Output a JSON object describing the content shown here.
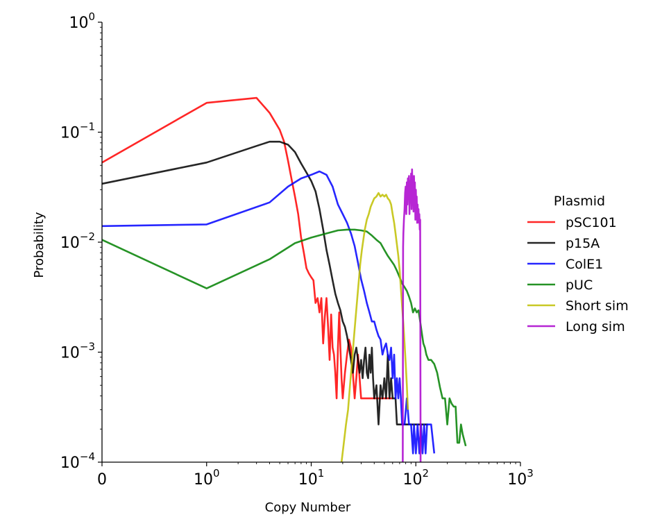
{
  "chart_data": {
    "type": "line",
    "title": "",
    "xlabel": "Copy Number",
    "ylabel": "Probability",
    "x_scale": "symlog",
    "y_scale": "log",
    "xlim": [
      0,
      1000
    ],
    "ylim": [
      0.0001,
      1
    ],
    "grid": false,
    "legend_title": "Plasmid",
    "legend_position": "right",
    "x_ticks": [
      {
        "base": "0",
        "exp": ""
      },
      {
        "base": "10",
        "exp": "0"
      },
      {
        "base": "10",
        "exp": "1"
      },
      {
        "base": "10",
        "exp": "2"
      },
      {
        "base": "10",
        "exp": "3"
      }
    ],
    "y_ticks": [
      {
        "base": "10",
        "exp": "0"
      },
      {
        "base": "10",
        "exp": "−1"
      },
      {
        "base": "10",
        "exp": "−2"
      },
      {
        "base": "10",
        "exp": "−3"
      },
      {
        "base": "10",
        "exp": "−4"
      }
    ],
    "series": [
      {
        "name": "pSC101",
        "color": "#ff0000",
        "points": [
          [
            0,
            0.053
          ],
          [
            1,
            0.185
          ],
          [
            3,
            0.205
          ],
          [
            4,
            0.15
          ],
          [
            5,
            0.105
          ],
          [
            5.5,
            0.082
          ],
          [
            6,
            0.055
          ],
          [
            6.5,
            0.037
          ],
          [
            7,
            0.026
          ],
          [
            7.5,
            0.018
          ],
          [
            8,
            0.011
          ],
          [
            8.5,
            0.008
          ],
          [
            9,
            0.0058
          ],
          [
            9.5,
            0.0052
          ],
          [
            10,
            0.0048
          ],
          [
            10.5,
            0.0045
          ],
          [
            11,
            0.0028
          ],
          [
            11.5,
            0.0031
          ],
          [
            12,
            0.0023
          ],
          [
            12.5,
            0.0031
          ],
          [
            13,
            0.0012
          ],
          [
            13.5,
            0.0021
          ],
          [
            14,
            0.0031
          ],
          [
            14.5,
            0.0017
          ],
          [
            15,
            0.00085
          ],
          [
            15.5,
            0.0022
          ],
          [
            16,
            0.0011
          ],
          [
            16.5,
            0.00095
          ],
          [
            17,
            0.00065
          ],
          [
            17.5,
            0.00038
          ],
          [
            18,
            0.0011
          ],
          [
            18.5,
            0.0023
          ],
          [
            19,
            0.0011
          ],
          [
            19.5,
            0.00058
          ],
          [
            20,
            0.00038
          ],
          [
            21,
            0.00065
          ],
          [
            22,
            0.00095
          ],
          [
            23,
            0.0013
          ],
          [
            24,
            0.0011
          ],
          [
            25,
            0.00065
          ],
          [
            26,
            0.00038
          ],
          [
            27,
            0.00058
          ],
          [
            28,
            0.00095
          ],
          [
            29,
            0.00058
          ],
          [
            30,
            0.00038
          ],
          [
            33,
            0.00038
          ],
          [
            40,
            0.00038
          ],
          [
            50,
            0.00038
          ],
          [
            60,
            0.00038
          ]
        ]
      },
      {
        "name": "p15A",
        "color": "#000000",
        "points": [
          [
            0,
            0.034
          ],
          [
            1,
            0.053
          ],
          [
            3,
            0.075
          ],
          [
            4,
            0.082
          ],
          [
            5,
            0.082
          ],
          [
            6,
            0.077
          ],
          [
            7,
            0.066
          ],
          [
            8,
            0.052
          ],
          [
            9,
            0.043
          ],
          [
            10,
            0.036
          ],
          [
            11,
            0.029
          ],
          [
            12,
            0.02
          ],
          [
            13,
            0.013
          ],
          [
            14,
            0.0085
          ],
          [
            15,
            0.0062
          ],
          [
            16,
            0.0045
          ],
          [
            17,
            0.0034
          ],
          [
            18,
            0.0028
          ],
          [
            19,
            0.0024
          ],
          [
            20,
            0.0019
          ],
          [
            21,
            0.0017
          ],
          [
            22,
            0.0014
          ],
          [
            23,
            0.0011
          ],
          [
            24,
            0.00085
          ],
          [
            25,
            0.00065
          ],
          [
            26,
            0.00095
          ],
          [
            27,
            0.0011
          ],
          [
            28,
            0.00085
          ],
          [
            29,
            0.00065
          ],
          [
            30,
            0.00085
          ],
          [
            31,
            0.00058
          ],
          [
            32,
            0.00085
          ],
          [
            33,
            0.0011
          ],
          [
            34,
            0.00065
          ],
          [
            35,
            0.00058
          ],
          [
            36,
            0.00095
          ],
          [
            37,
            0.00065
          ],
          [
            38,
            0.0011
          ],
          [
            39,
            0.00058
          ],
          [
            40,
            0.00038
          ],
          [
            42,
            0.0005
          ],
          [
            44,
            0.00022
          ],
          [
            46,
            0.0005
          ],
          [
            48,
            0.00038
          ],
          [
            50,
            0.00058
          ],
          [
            52,
            0.00038
          ],
          [
            54,
            0.00095
          ],
          [
            56,
            0.00038
          ],
          [
            58,
            0.00058
          ],
          [
            60,
            0.00038
          ],
          [
            64,
            0.00038
          ],
          [
            66,
            0.00022
          ],
          [
            70,
            0.00022
          ],
          [
            80,
            0.00022
          ],
          [
            90,
            0.00022
          ],
          [
            100,
            0.00022
          ],
          [
            110,
            0.00022
          ],
          [
            130,
            0.00022
          ]
        ]
      },
      {
        "name": "ColE1",
        "color": "#0000ff",
        "points": [
          [
            0,
            0.014
          ],
          [
            1,
            0.0145
          ],
          [
            4,
            0.023
          ],
          [
            6,
            0.032
          ],
          [
            8,
            0.038
          ],
          [
            10,
            0.041
          ],
          [
            12,
            0.044
          ],
          [
            14,
            0.041
          ],
          [
            16,
            0.032
          ],
          [
            18,
            0.022
          ],
          [
            20,
            0.018
          ],
          [
            22,
            0.015
          ],
          [
            24,
            0.012
          ],
          [
            26,
            0.0092
          ],
          [
            28,
            0.0065
          ],
          [
            30,
            0.0046
          ],
          [
            32,
            0.0036
          ],
          [
            34,
            0.0028
          ],
          [
            36,
            0.0023
          ],
          [
            38,
            0.0019
          ],
          [
            40,
            0.0019
          ],
          [
            42,
            0.0016
          ],
          [
            44,
            0.0014
          ],
          [
            46,
            0.0013
          ],
          [
            48,
            0.00095
          ],
          [
            50,
            0.0011
          ],
          [
            52,
            0.0012
          ],
          [
            54,
            0.00095
          ],
          [
            56,
            0.00085
          ],
          [
            58,
            0.0011
          ],
          [
            60,
            0.00058
          ],
          [
            62,
            0.00095
          ],
          [
            64,
            0.00038
          ],
          [
            66,
            0.00058
          ],
          [
            68,
            0.00038
          ],
          [
            70,
            0.00058
          ],
          [
            72,
            0.00038
          ],
          [
            74,
            0.00022
          ],
          [
            78,
            0.00022
          ],
          [
            82,
            0.00038
          ],
          [
            86,
            0.00022
          ],
          [
            90,
            0.00022
          ],
          [
            94,
            0.00012
          ],
          [
            96,
            0.00022
          ],
          [
            100,
            0.00012
          ],
          [
            104,
            0.00022
          ],
          [
            108,
            0.00012
          ],
          [
            112,
            0.00022
          ],
          [
            116,
            0.00012
          ],
          [
            120,
            0.00022
          ],
          [
            124,
            0.00012
          ],
          [
            128,
            0.00022
          ],
          [
            132,
            0.00022
          ],
          [
            140,
            0.00022
          ],
          [
            150,
            0.00012
          ]
        ]
      },
      {
        "name": "pUC",
        "color": "#008000",
        "points": [
          [
            0,
            0.0105
          ],
          [
            1,
            0.0038
          ],
          [
            4,
            0.007
          ],
          [
            7,
            0.0098
          ],
          [
            10,
            0.011
          ],
          [
            14,
            0.012
          ],
          [
            18,
            0.0128
          ],
          [
            22,
            0.013
          ],
          [
            26,
            0.013
          ],
          [
            30,
            0.0128
          ],
          [
            34,
            0.0125
          ],
          [
            38,
            0.0115
          ],
          [
            42,
            0.0105
          ],
          [
            46,
            0.0098
          ],
          [
            50,
            0.0085
          ],
          [
            54,
            0.0075
          ],
          [
            58,
            0.0068
          ],
          [
            62,
            0.0062
          ],
          [
            66,
            0.0055
          ],
          [
            70,
            0.0048
          ],
          [
            74,
            0.0042
          ],
          [
            78,
            0.0039
          ],
          [
            82,
            0.0036
          ],
          [
            86,
            0.0032
          ],
          [
            90,
            0.0028
          ],
          [
            94,
            0.0023
          ],
          [
            98,
            0.0025
          ],
          [
            102,
            0.0023
          ],
          [
            106,
            0.0024
          ],
          [
            110,
            0.0019
          ],
          [
            114,
            0.0015
          ],
          [
            118,
            0.0012
          ],
          [
            122,
            0.0011
          ],
          [
            126,
            0.00095
          ],
          [
            132,
            0.00085
          ],
          [
            140,
            0.00085
          ],
          [
            150,
            0.00078
          ],
          [
            160,
            0.00065
          ],
          [
            170,
            0.00048
          ],
          [
            180,
            0.00038
          ],
          [
            190,
            0.00038
          ],
          [
            200,
            0.00022
          ],
          [
            210,
            0.00038
          ],
          [
            220,
            0.00034
          ],
          [
            230,
            0.00032
          ],
          [
            240,
            0.00032
          ],
          [
            250,
            0.00015
          ],
          [
            260,
            0.00015
          ],
          [
            270,
            0.00022
          ],
          [
            280,
            0.00018
          ],
          [
            300,
            0.00014
          ]
        ]
      },
      {
        "name": "Short sim",
        "color": "#bfbf00",
        "points": [
          [
            19.5,
            0.0001
          ],
          [
            20.5,
            0.00015
          ],
          [
            21.5,
            0.00022
          ],
          [
            22.5,
            0.0003
          ],
          [
            23.5,
            0.0005
          ],
          [
            24.5,
            0.0008
          ],
          [
            25.5,
            0.0013
          ],
          [
            26.5,
            0.002
          ],
          [
            27.5,
            0.003
          ],
          [
            28.5,
            0.0045
          ],
          [
            29.5,
            0.0065
          ],
          [
            30.5,
            0.0085
          ],
          [
            31.5,
            0.0105
          ],
          [
            32.5,
            0.013
          ],
          [
            34,
            0.016
          ],
          [
            35.5,
            0.018
          ],
          [
            37,
            0.021
          ],
          [
            38.5,
            0.023
          ],
          [
            40,
            0.025
          ],
          [
            42,
            0.026
          ],
          [
            44,
            0.028
          ],
          [
            46,
            0.026
          ],
          [
            48,
            0.027
          ],
          [
            50,
            0.026
          ],
          [
            52,
            0.027
          ],
          [
            54,
            0.025
          ],
          [
            56,
            0.024
          ],
          [
            58,
            0.022
          ],
          [
            60,
            0.018
          ],
          [
            62,
            0.015
          ],
          [
            64,
            0.012
          ],
          [
            66,
            0.0095
          ],
          [
            68,
            0.0075
          ],
          [
            70,
            0.0056
          ],
          [
            72,
            0.0038
          ],
          [
            74,
            0.0026
          ],
          [
            76,
            0.0018
          ],
          [
            78,
            0.0012
          ],
          [
            80,
            0.0008
          ],
          [
            82,
            0.0005
          ],
          [
            84,
            0.0003
          ]
        ]
      },
      {
        "name": "Long sim",
        "color": "#aa00cc",
        "points": [
          [
            75,
            0.0001
          ],
          [
            75.5,
            0.009
          ],
          [
            76,
            0.012
          ],
          [
            77,
            0.016
          ],
          [
            78,
            0.02
          ],
          [
            79,
            0.028
          ],
          [
            80,
            0.032
          ],
          [
            81,
            0.018
          ],
          [
            82,
            0.035
          ],
          [
            83,
            0.022
          ],
          [
            84,
            0.038
          ],
          [
            85,
            0.026
          ],
          [
            86,
            0.04
          ],
          [
            87,
            0.018
          ],
          [
            88,
            0.036
          ],
          [
            89,
            0.024
          ],
          [
            90,
            0.042
          ],
          [
            91,
            0.02
          ],
          [
            92,
            0.046
          ],
          [
            93,
            0.028
          ],
          [
            94,
            0.038
          ],
          [
            95,
            0.019
          ],
          [
            96,
            0.04
          ],
          [
            97,
            0.024
          ],
          [
            98,
            0.035
          ],
          [
            99,
            0.016
          ],
          [
            100,
            0.03
          ],
          [
            101,
            0.02
          ],
          [
            102,
            0.026
          ],
          [
            103,
            0.015
          ],
          [
            104,
            0.022
          ],
          [
            105,
            0.016
          ],
          [
            106,
            0.02
          ],
          [
            107,
            0.015
          ],
          [
            108,
            0.018
          ],
          [
            109,
            0.013
          ],
          [
            110,
            0.016
          ],
          [
            111,
            0.0001
          ]
        ]
      }
    ]
  }
}
